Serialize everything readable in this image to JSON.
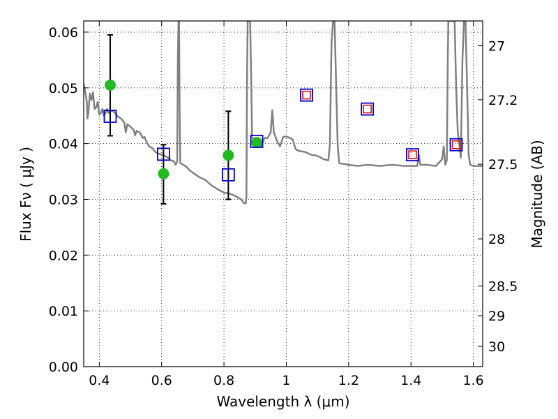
{
  "chart_data": {
    "type": "scatter",
    "title": "",
    "xlabel": "Wavelength  λ (μm)",
    "ylabel": "Flux  Fν  ( μJy )",
    "ylabel_right": "Magnitude (AB)",
    "xlim": [
      0.35,
      1.63
    ],
    "ylim": [
      0.0,
      0.062
    ],
    "grid": true,
    "x_ticks": [
      0.4,
      0.6,
      0.8,
      1.0,
      1.2,
      1.4,
      1.6
    ],
    "x_tick_labels": [
      "0.4",
      "0.6",
      "0.8",
      "1",
      "1.2",
      "1.4",
      "1.6"
    ],
    "y_ticks": [
      0.0,
      0.01,
      0.02,
      0.03,
      0.04,
      0.05,
      0.06
    ],
    "y_tick_labels": [
      "0.00",
      "0.01",
      "0.02",
      "0.03",
      "0.04",
      "0.05",
      "0.06"
    ],
    "right_ticks": [
      {
        "mag": 27.0,
        "label": "27"
      },
      {
        "mag": 27.2,
        "label": "27.2"
      },
      {
        "mag": 27.5,
        "label": "27.5"
      },
      {
        "mag": 28.0,
        "label": "28"
      },
      {
        "mag": 28.5,
        "label": "28.5"
      },
      {
        "mag": 29.0,
        "label": "29"
      },
      {
        "mag": 30.0,
        "label": "30"
      }
    ],
    "colors": {
      "model": "#808080",
      "observed": "#22bb22",
      "model_band": "#0000cc",
      "model_band_inner": "#dd0000",
      "errorbar": "#000000"
    },
    "series": [
      {
        "kind": "line",
        "points": [
          [
            0.35,
            0.0508
          ],
          [
            0.355,
            0.0492
          ],
          [
            0.36,
            0.0475
          ],
          [
            0.362,
            0.0445
          ],
          [
            0.365,
            0.0455
          ],
          [
            0.37,
            0.049
          ],
          [
            0.375,
            0.0478
          ],
          [
            0.38,
            0.0492
          ],
          [
            0.385,
            0.0462
          ],
          [
            0.39,
            0.0465
          ],
          [
            0.395,
            0.0475
          ],
          [
            0.4,
            0.0452
          ],
          [
            0.405,
            0.0455
          ],
          [
            0.41,
            0.0462
          ],
          [
            0.415,
            0.045
          ],
          [
            0.42,
            0.0455
          ],
          [
            0.425,
            0.0462
          ],
          [
            0.43,
            0.0455
          ],
          [
            0.435,
            0.0458
          ],
          [
            0.44,
            0.0458
          ],
          [
            0.445,
            0.0458
          ],
          [
            0.45,
            0.0455
          ],
          [
            0.455,
            0.0452
          ],
          [
            0.46,
            0.0448
          ],
          [
            0.47,
            0.0445
          ],
          [
            0.48,
            0.0438
          ],
          [
            0.485,
            0.042
          ],
          [
            0.49,
            0.0435
          ],
          [
            0.5,
            0.043
          ],
          [
            0.51,
            0.0425
          ],
          [
            0.515,
            0.0415
          ],
          [
            0.52,
            0.0423
          ],
          [
            0.53,
            0.042
          ],
          [
            0.54,
            0.041
          ],
          [
            0.545,
            0.0412
          ],
          [
            0.55,
            0.0405
          ],
          [
            0.56,
            0.0395
          ],
          [
            0.57,
            0.0392
          ],
          [
            0.58,
            0.0385
          ],
          [
            0.59,
            0.0382
          ],
          [
            0.6,
            0.038
          ],
          [
            0.61,
            0.0378
          ],
          [
            0.62,
            0.0375
          ],
          [
            0.63,
            0.037
          ],
          [
            0.64,
            0.0368
          ],
          [
            0.645,
            0.0362
          ],
          [
            0.65,
            0.0368
          ],
          [
            0.652,
            0.055
          ],
          [
            0.654,
            0.062
          ],
          [
            0.656,
            0.062
          ],
          [
            0.658,
            0.045
          ],
          [
            0.66,
            0.0365
          ],
          [
            0.67,
            0.0362
          ],
          [
            0.68,
            0.0358
          ],
          [
            0.69,
            0.0352
          ],
          [
            0.7,
            0.0348
          ],
          [
            0.72,
            0.034
          ],
          [
            0.74,
            0.0335
          ],
          [
            0.76,
            0.0325
          ],
          [
            0.78,
            0.0318
          ],
          [
            0.8,
            0.0312
          ],
          [
            0.82,
            0.031
          ],
          [
            0.84,
            0.0305
          ],
          [
            0.855,
            0.03
          ],
          [
            0.865,
            0.0293
          ],
          [
            0.87,
            0.0293
          ],
          [
            0.872,
            0.0305
          ],
          [
            0.874,
            0.052
          ],
          [
            0.876,
            0.062
          ],
          [
            0.88,
            0.062
          ],
          [
            0.884,
            0.062
          ],
          [
            0.888,
            0.05
          ],
          [
            0.89,
            0.0412
          ],
          [
            0.9,
            0.04
          ],
          [
            0.91,
            0.0395
          ],
          [
            0.92,
            0.0395
          ],
          [
            0.93,
            0.041
          ],
          [
            0.94,
            0.041
          ],
          [
            0.95,
            0.042
          ],
          [
            0.955,
            0.046
          ],
          [
            0.96,
            0.042
          ],
          [
            0.97,
            0.0405
          ],
          [
            0.98,
            0.0395
          ],
          [
            0.99,
            0.0412
          ],
          [
            1.0,
            0.0413
          ],
          [
            1.02,
            0.0408
          ],
          [
            1.03,
            0.039
          ],
          [
            1.04,
            0.0387
          ],
          [
            1.06,
            0.0385
          ],
          [
            1.08,
            0.038
          ],
          [
            1.1,
            0.0378
          ],
          [
            1.12,
            0.0372
          ],
          [
            1.135,
            0.037
          ],
          [
            1.14,
            0.04
          ],
          [
            1.145,
            0.058
          ],
          [
            1.15,
            0.062
          ],
          [
            1.155,
            0.062
          ],
          [
            1.16,
            0.05
          ],
          [
            1.165,
            0.0395
          ],
          [
            1.17,
            0.0365
          ],
          [
            1.2,
            0.0362
          ],
          [
            1.23,
            0.036
          ],
          [
            1.26,
            0.0362
          ],
          [
            1.3,
            0.036
          ],
          [
            1.34,
            0.0362
          ],
          [
            1.38,
            0.036
          ],
          [
            1.4,
            0.036
          ],
          [
            1.42,
            0.036
          ],
          [
            1.425,
            0.038
          ],
          [
            1.43,
            0.0362
          ],
          [
            1.45,
            0.0362
          ],
          [
            1.48,
            0.036
          ],
          [
            1.5,
            0.0372
          ],
          [
            1.505,
            0.0395
          ],
          [
            1.51,
            0.0362
          ],
          [
            1.515,
            0.037
          ],
          [
            1.518,
            0.055
          ],
          [
            1.52,
            0.062
          ],
          [
            1.525,
            0.062
          ],
          [
            1.535,
            0.062
          ],
          [
            1.54,
            0.062
          ],
          [
            1.545,
            0.05
          ],
          [
            1.55,
            0.042
          ],
          [
            1.555,
            0.04
          ],
          [
            1.56,
            0.0375
          ],
          [
            1.565,
            0.055
          ],
          [
            1.57,
            0.062
          ],
          [
            1.575,
            0.062
          ],
          [
            1.58,
            0.05
          ],
          [
            1.585,
            0.038
          ],
          [
            1.59,
            0.0362
          ],
          [
            1.6,
            0.036
          ],
          [
            1.62,
            0.036
          ],
          [
            1.63,
            0.036
          ]
        ]
      },
      {
        "kind": "observed",
        "points": [
          {
            "x": 0.435,
            "y": 0.0505,
            "err_low": 0.0414,
            "err_high": 0.0595
          },
          {
            "x": 0.606,
            "y": 0.0346,
            "err_low": 0.0292,
            "err_high": 0.0398
          },
          {
            "x": 0.814,
            "y": 0.0379,
            "err_low": 0.03,
            "err_high": 0.0458
          },
          {
            "x": 0.905,
            "y": 0.0402
          }
        ]
      },
      {
        "kind": "model_band",
        "points": [
          {
            "x": 0.435,
            "y": 0.0449,
            "inner": false
          },
          {
            "x": 0.606,
            "y": 0.0381,
            "inner": false
          },
          {
            "x": 0.814,
            "y": 0.0344,
            "inner": false
          },
          {
            "x": 0.905,
            "y": 0.0404,
            "inner": false
          },
          {
            "x": 1.065,
            "y": 0.0487,
            "inner": true
          },
          {
            "x": 1.26,
            "y": 0.0462,
            "inner": true
          },
          {
            "x": 1.405,
            "y": 0.038,
            "inner": true
          },
          {
            "x": 1.545,
            "y": 0.0398,
            "inner": true
          }
        ]
      }
    ]
  }
}
